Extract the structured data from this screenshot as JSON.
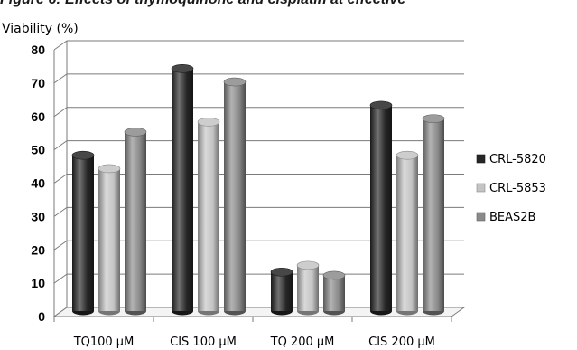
{
  "figure_title": "Figure 6: Effects of thymoquinone and cisplatin at effective",
  "chart_data": {
    "type": "bar",
    "ylabel": "Viability (%)",
    "xlabel": "",
    "ylim": [
      0,
      80
    ],
    "yticks": [
      0,
      10,
      20,
      30,
      40,
      50,
      60,
      70,
      80
    ],
    "grid": true,
    "legend_position": "right",
    "categories": [
      "TQ100 µM",
      "CIS 100 µM",
      "TQ 200 µM",
      "CIS 200 µM"
    ],
    "series": [
      {
        "name": "CRL-5820",
        "color": "#262626",
        "values": [
          47,
          73,
          12,
          62
        ]
      },
      {
        "name": "CRL-5853",
        "color": "#c4c4c4",
        "values": [
          43,
          57,
          14,
          47
        ]
      },
      {
        "name": "BEAS2B",
        "color": "#8a8a8a",
        "values": [
          54,
          69,
          11,
          58
        ]
      }
    ]
  }
}
